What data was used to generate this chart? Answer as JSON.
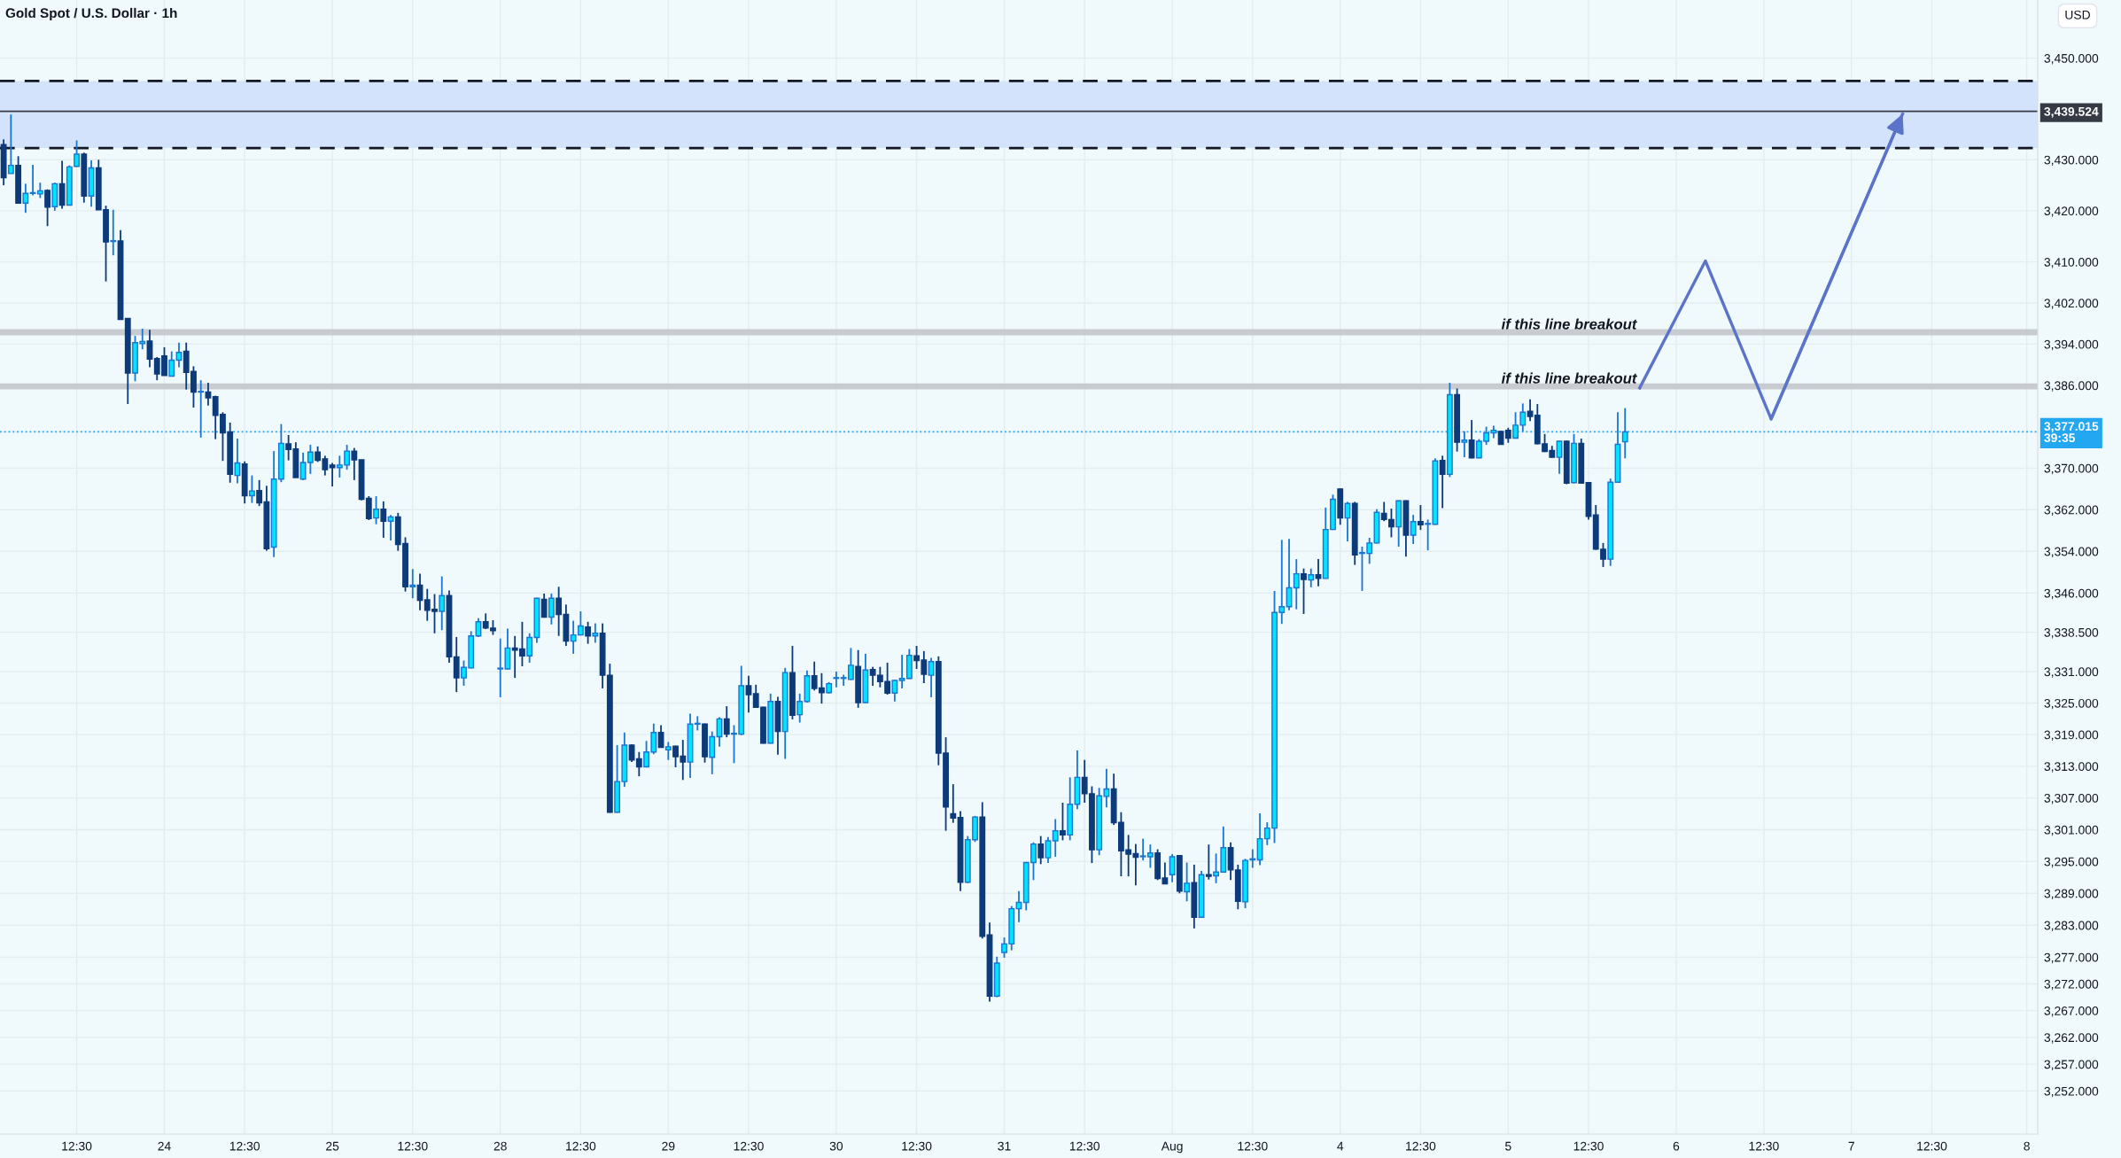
{
  "chart_data": {
    "type": "candlestick",
    "title": "Gold Spot / U.S. Dollar · 1h",
    "log": true,
    "grid": true,
    "ylim": [
      3244,
      3461.5
    ],
    "categories": [
      null,
      null,
      null,
      null,
      null,
      null,
      null,
      null,
      null,
      null,
      "12:30",
      null,
      null,
      null,
      null,
      null,
      null,
      null,
      null,
      null,
      null,
      null,
      "24",
      null,
      null,
      null,
      null,
      null,
      null,
      null,
      null,
      null,
      null,
      "12:30",
      null,
      null,
      null,
      null,
      null,
      null,
      null,
      null,
      null,
      null,
      null,
      "25",
      null,
      null,
      null,
      null,
      null,
      null,
      null,
      null,
      null,
      null,
      "12:30",
      null,
      null,
      null,
      null,
      null,
      null,
      null,
      null,
      null,
      null,
      null,
      "28",
      null,
      null,
      null,
      null,
      null,
      null,
      null,
      null,
      null,
      null,
      "12:30",
      null,
      null,
      null,
      null,
      null,
      null,
      null,
      null,
      null,
      null,
      null,
      "29",
      null,
      null,
      null,
      null,
      null,
      null,
      null,
      null,
      null,
      null,
      "12:30",
      null,
      null,
      null,
      null,
      null,
      null,
      null,
      null,
      null,
      null,
      null,
      "30",
      null,
      null,
      null,
      null,
      null,
      null,
      null,
      null,
      null,
      null,
      "12:30",
      null,
      null,
      null,
      null,
      null,
      null,
      null,
      null,
      null,
      null,
      null,
      "31",
      null,
      null,
      null,
      null,
      null,
      null,
      null,
      null,
      null,
      null,
      "12:30",
      null,
      null,
      null,
      null,
      null,
      null,
      null,
      null,
      null,
      null,
      null,
      "Aug",
      null,
      null,
      null,
      null,
      null,
      null,
      null,
      null,
      null,
      null,
      "12:30",
      null,
      null,
      null,
      null,
      null,
      null,
      null,
      null,
      null,
      null,
      null,
      "4",
      null,
      null,
      null,
      null,
      null,
      null,
      null,
      null,
      null,
      null,
      "12:30",
      null,
      null,
      null,
      null,
      null,
      null,
      null,
      null,
      null,
      null,
      null,
      "5",
      null,
      null,
      null,
      null,
      null,
      null,
      null,
      null,
      null,
      null,
      "12:30",
      null,
      null,
      null,
      null,
      null,
      null,
      null,
      null,
      null,
      null,
      null,
      "6",
      null,
      null,
      null,
      null,
      null,
      null,
      null,
      null,
      null,
      null,
      null,
      "12:30",
      null,
      null,
      null,
      null,
      null,
      null,
      null,
      null,
      null,
      null,
      null,
      "7",
      null,
      null,
      null,
      null,
      null,
      null,
      null,
      null,
      null,
      null,
      "12:30",
      null,
      null,
      null,
      null,
      null,
      null,
      null,
      null,
      null,
      null,
      null,
      null,
      "8",
      null
    ],
    "yticks": [
      {
        "value": 3450,
        "label": "3,450.000"
      },
      {
        "value": 3439.524,
        "label": "3,439.524"
      },
      {
        "value": 3430,
        "label": "3,430.000"
      },
      {
        "value": 3420,
        "label": "3,420.000"
      },
      {
        "value": 3410,
        "label": "3,410.000"
      },
      {
        "value": 3402,
        "label": "3,402.000"
      },
      {
        "value": 3394,
        "label": "3,394.000"
      },
      {
        "value": 3386,
        "label": "3,386.000"
      },
      {
        "value": 3377.015,
        "label": "3,377.015\n39:35"
      },
      {
        "value": 3370,
        "label": "3,370.000"
      },
      {
        "value": 3362,
        "label": "3,362.000"
      },
      {
        "value": 3354,
        "label": "3,354.000"
      },
      {
        "value": 3346,
        "label": "3,346.000"
      },
      {
        "value": 3338.5,
        "label": "3,338.500"
      },
      {
        "value": 3331,
        "label": "3,331.000"
      },
      {
        "value": 3325,
        "label": "3,325.000"
      },
      {
        "value": 3319,
        "label": "3,319.000"
      },
      {
        "value": 3313,
        "label": "3,313.000"
      },
      {
        "value": 3307,
        "label": "3,307.000"
      },
      {
        "value": 3301,
        "label": "3,301.000"
      },
      {
        "value": 3295,
        "label": "3,295.000"
      },
      {
        "value": 3289,
        "label": "3,289.000"
      },
      {
        "value": 3283,
        "label": "3,283.000"
      },
      {
        "value": 3277,
        "label": "3,277.000"
      },
      {
        "value": 3272,
        "label": "3,272.000"
      },
      {
        "value": 3267,
        "label": "3,267.000"
      },
      {
        "value": 3262,
        "label": "3,262.000"
      },
      {
        "value": 3257,
        "label": "3,257.000"
      },
      {
        "value": 3252,
        "label": "3,252.000"
      }
    ],
    "ohlc": [
      [
        3433,
        3434,
        3425,
        3426.5
      ],
      [
        3427.3,
        3438.9,
        3427.3,
        3428.9
      ],
      [
        3428.9,
        3430.7,
        3421.5,
        3421.5
      ],
      [
        3421.5,
        3425.3,
        3419.6,
        3423.4
      ],
      [
        3423.4,
        3429,
        3423,
        3423.5
      ],
      [
        3423.3,
        3425.5,
        3422.5,
        3423.9
      ],
      [
        3424,
        3424.2,
        3417,
        3420.7
      ],
      [
        3420.8,
        3425.5,
        3420,
        3425.3
      ],
      [
        3425.3,
        3429.8,
        3420.4,
        3421.1
      ],
      [
        3421.1,
        3428.9,
        3421.1,
        3428.6
      ],
      [
        3428.7,
        3433.8,
        3428.6,
        3431.1
      ],
      [
        3431.1,
        3431.4,
        3421.6,
        3422.9
      ],
      [
        3422.9,
        3429.9,
        3420.8,
        3428.4
      ],
      [
        3428.4,
        3430,
        3420.2,
        3420.2
      ],
      [
        3420.2,
        3421,
        3406.2,
        3413.9
      ],
      [
        3414,
        3420.2,
        3411.3,
        3414
      ],
      [
        3414.1,
        3416.2,
        3398.8,
        3398.8
      ],
      [
        3399,
        3399,
        3382.4,
        3388.4
      ],
      [
        3388.4,
        3395.6,
        3386.8,
        3394.3
      ],
      [
        3394.1,
        3397,
        3393,
        3394.5
      ],
      [
        3394.6,
        3396.8,
        3389.5,
        3391.1
      ],
      [
        3391.2,
        3391.5,
        3387,
        3388.2
      ],
      [
        3391.7,
        3393.4,
        3387.9,
        3387.9
      ],
      [
        3387.8,
        3392.6,
        3387.8,
        3390.9
      ],
      [
        3390.9,
        3394.3,
        3389.5,
        3392.4
      ],
      [
        3392.6,
        3394.3,
        3385.2,
        3388.5
      ],
      [
        3388.7,
        3389.7,
        3381.7,
        3384.7
      ],
      [
        3384.7,
        3387,
        3375.9,
        3384.7
      ],
      [
        3384.7,
        3386.5,
        3382.1,
        3383.6
      ],
      [
        3383.8,
        3384,
        3375.6,
        3380.2
      ],
      [
        3380.4,
        3380.8,
        3371.4,
        3376.8
      ],
      [
        3377,
        3378.8,
        3367.2,
        3368.8
      ],
      [
        3368.6,
        3375.7,
        3367.1,
        3371
      ],
      [
        3370.8,
        3371.3,
        3363.2,
        3364.7
      ],
      [
        3364.7,
        3368.6,
        3363.3,
        3365.6
      ],
      [
        3365.7,
        3367.7,
        3362.7,
        3363.3
      ],
      [
        3363.5,
        3366.6,
        3354.1,
        3354.5
      ],
      [
        3354.8,
        3373.3,
        3352.9,
        3367.9
      ],
      [
        3367.9,
        3378.5,
        3367.3,
        3374.8
      ],
      [
        3374.7,
        3376.4,
        3371.5,
        3373.6
      ],
      [
        3373.7,
        3375,
        3368.2,
        3368.2
      ],
      [
        3367.9,
        3373,
        3367.7,
        3371.1
      ],
      [
        3371.1,
        3374.5,
        3368.9,
        3373.1
      ],
      [
        3373.1,
        3374.2,
        3371.2,
        3371.5
      ],
      [
        3371.8,
        3372.4,
        3368.6,
        3369.7
      ],
      [
        3370.6,
        3371,
        3366.5,
        3370.1
      ],
      [
        3370.1,
        3372.4,
        3368.2,
        3370.6
      ],
      [
        3370.6,
        3374.5,
        3369.7,
        3373.3
      ],
      [
        3373.3,
        3373.9,
        3367.7,
        3371.6
      ],
      [
        3371.6,
        3371.6,
        3363.8,
        3364
      ],
      [
        3364.2,
        3364.6,
        3360,
        3360.3
      ],
      [
        3360.4,
        3364.6,
        3359.2,
        3362.1
      ],
      [
        3362.1,
        3363.6,
        3356.6,
        3359.8
      ],
      [
        3359.8,
        3361,
        3356.1,
        3360.6
      ],
      [
        3360.6,
        3361.4,
        3354.1,
        3355.3
      ],
      [
        3355.5,
        3356.7,
        3346.3,
        3347.2
      ],
      [
        3347.2,
        3350.6,
        3345,
        3347.5
      ],
      [
        3347.5,
        3349.7,
        3342.7,
        3344.6
      ],
      [
        3344.7,
        3346.8,
        3340.7,
        3342.7
      ],
      [
        3342.9,
        3345.8,
        3338.3,
        3342.5
      ],
      [
        3342.5,
        3349.2,
        3338.9,
        3345.5
      ],
      [
        3345.5,
        3346.5,
        3332.7,
        3333.8
      ],
      [
        3333.8,
        3337.6,
        3327.1,
        3329.8
      ],
      [
        3329.8,
        3333.1,
        3328.3,
        3331.8
      ],
      [
        3331.7,
        3338.7,
        3331.6,
        3337.8
      ],
      [
        3337.8,
        3341.2,
        3337.6,
        3340.5
      ],
      [
        3340.5,
        3342.1,
        3339.1,
        3339.3
      ],
      [
        3339.3,
        3340.8,
        3338,
        3338.8
      ],
      [
        3331.5,
        3337.3,
        3326.1,
        3331.5
      ],
      [
        3331.5,
        3339.2,
        3331.4,
        3335.5
      ],
      [
        3335.5,
        3337.8,
        3329.8,
        3335.1
      ],
      [
        3335.3,
        3340.5,
        3332,
        3334
      ],
      [
        3334,
        3338.3,
        3332.7,
        3337.5
      ],
      [
        3337.5,
        3345.1,
        3336.5,
        3345
      ],
      [
        3344.8,
        3345.9,
        3341.3,
        3341.4
      ],
      [
        3341.4,
        3345.9,
        3340,
        3345
      ],
      [
        3345,
        3347.2,
        3337.8,
        3341.9
      ],
      [
        3341.9,
        3343.8,
        3335.9,
        3336.8
      ],
      [
        3336.8,
        3340.7,
        3334.4,
        3338
      ],
      [
        3338,
        3342.5,
        3337.9,
        3339.7
      ],
      [
        3339.5,
        3340.5,
        3336.3,
        3337.8
      ],
      [
        3337.8,
        3340.2,
        3336.5,
        3338.3
      ],
      [
        3338.3,
        3340.2,
        3327.8,
        3330.3
      ],
      [
        3330.3,
        3332.5,
        3304.2,
        3304.3
      ],
      [
        3304.3,
        3317,
        3304.2,
        3310.1
      ],
      [
        3310.1,
        3319.4,
        3309.1,
        3317
      ],
      [
        3317,
        3317.2,
        3313.8,
        3314.2
      ],
      [
        3314.4,
        3315.7,
        3311.1,
        3312.9
      ],
      [
        3312.9,
        3317.8,
        3312.8,
        3315.7
      ],
      [
        3315.7,
        3321.1,
        3315.3,
        3319.4
      ],
      [
        3319.4,
        3320.8,
        3316.5,
        3316.6
      ],
      [
        3316.1,
        3317.6,
        3314.2,
        3316.7
      ],
      [
        3316.8,
        3316.9,
        3312.8,
        3314.8
      ],
      [
        3314.9,
        3318,
        3310.4,
        3313.8
      ],
      [
        3313.8,
        3323,
        3310.8,
        3321
      ],
      [
        3321,
        3322.5,
        3319.8,
        3321
      ],
      [
        3321,
        3321.1,
        3313.7,
        3314.8
      ],
      [
        3314.7,
        3319.6,
        3311.5,
        3318.6
      ],
      [
        3318.6,
        3322.3,
        3316.7,
        3322
      ],
      [
        3322,
        3324.4,
        3318.5,
        3319.1
      ],
      [
        3319.1,
        3320.8,
        3313.6,
        3319.1
      ],
      [
        3319.1,
        3332.1,
        3318.9,
        3328.3
      ],
      [
        3328.3,
        3330.2,
        3323.2,
        3326.6
      ],
      [
        3326.8,
        3328.5,
        3324.1,
        3324.2
      ],
      [
        3324.2,
        3324.3,
        3317.3,
        3317.4
      ],
      [
        3317.4,
        3326.8,
        3317.3,
        3325.3
      ],
      [
        3325.3,
        3326.2,
        3315.2,
        3319.6
      ],
      [
        3319.6,
        3331.7,
        3314.4,
        3330.8
      ],
      [
        3330.8,
        3335.9,
        3321.9,
        3322.7
      ],
      [
        3322.8,
        3326.8,
        3321.3,
        3325.3
      ],
      [
        3325.3,
        3331.2,
        3325.1,
        3330.2
      ],
      [
        3330.2,
        3332.9,
        3327.4,
        3327.8
      ],
      [
        3327.9,
        3330.7,
        3324.9,
        3327
      ],
      [
        3327,
        3329,
        3326.8,
        3328.7
      ],
      [
        3329.7,
        3331,
        3328,
        3329.7
      ],
      [
        3329.7,
        3330.4,
        3328.3,
        3329.7
      ],
      [
        3329.5,
        3335.5,
        3329.4,
        3332.2
      ],
      [
        3332,
        3335.1,
        3324.1,
        3325.1
      ],
      [
        3325.1,
        3334.4,
        3325,
        3331.3
      ],
      [
        3331.4,
        3331.9,
        3328.3,
        3330.3
      ],
      [
        3330.3,
        3331.9,
        3328,
        3329.1
      ],
      [
        3329.1,
        3332.7,
        3326.6,
        3326.9
      ],
      [
        3326.9,
        3329.4,
        3325.3,
        3329.3
      ],
      [
        3329.3,
        3334.2,
        3327.8,
        3329.7
      ],
      [
        3329.7,
        3335.3,
        3329.6,
        3334.1
      ],
      [
        3334,
        3335.9,
        3331.5,
        3333.1
      ],
      [
        3333.2,
        3334.9,
        3328.8,
        3330.5
      ],
      [
        3330.3,
        3333.6,
        3326.1,
        3332.9
      ],
      [
        3332.9,
        3333.9,
        3313.2,
        3315.5
      ],
      [
        3315.5,
        3318.5,
        3300.8,
        3305.3
      ],
      [
        3304,
        3309.6,
        3302.3,
        3303.2
      ],
      [
        3303.3,
        3304.5,
        3289.4,
        3291.1
      ],
      [
        3291.1,
        3299.8,
        3290.9,
        3299.1
      ],
      [
        3299.1,
        3303.6,
        3298.7,
        3303.4
      ],
      [
        3303.4,
        3306.2,
        3280.5,
        3280.9
      ],
      [
        3281.2,
        3283.5,
        3268.7,
        3269.7
      ],
      [
        3269.7,
        3277.1,
        3269.5,
        3275.9
      ],
      [
        3277.9,
        3280.7,
        3276.9,
        3279.5
      ],
      [
        3279.5,
        3286.6,
        3278.3,
        3286.1
      ],
      [
        3286.1,
        3289.4,
        3283.6,
        3287.3
      ],
      [
        3287.3,
        3294.9,
        3285.8,
        3294.8
      ],
      [
        3294.8,
        3298.6,
        3291.5,
        3298.3
      ],
      [
        3298.3,
        3299.8,
        3294.5,
        3295.7
      ],
      [
        3295.7,
        3299.6,
        3294.7,
        3298.9
      ],
      [
        3298.9,
        3303,
        3295.9,
        3300.8
      ],
      [
        3300.8,
        3306.1,
        3299,
        3300
      ],
      [
        3300,
        3310.9,
        3299,
        3305.8
      ],
      [
        3305.8,
        3316,
        3304.9,
        3310.9
      ],
      [
        3310.9,
        3314.2,
        3306.1,
        3307.8
      ],
      [
        3307.8,
        3309.2,
        3294.7,
        3297.2
      ],
      [
        3297.2,
        3308.9,
        3296.2,
        3307.4
      ],
      [
        3307.3,
        3312.5,
        3305.2,
        3308.7
      ],
      [
        3308.7,
        3311.6,
        3301.9,
        3302.3
      ],
      [
        3302.4,
        3304.3,
        3292.2,
        3297
      ],
      [
        3297.2,
        3300,
        3292.2,
        3296.4
      ],
      [
        3296.5,
        3298.3,
        3290.5,
        3295.8
      ],
      [
        3295.9,
        3299.3,
        3295.2,
        3295.9
      ],
      [
        3295.9,
        3298.2,
        3293.8,
        3296.6
      ],
      [
        3296.6,
        3297.3,
        3291.5,
        3291.8
      ],
      [
        3291.9,
        3294.8,
        3290.8,
        3290.8
      ],
      [
        3292.5,
        3296.4,
        3291.1,
        3295.9
      ],
      [
        3296.1,
        3296.2,
        3289,
        3289.4
      ],
      [
        3289.3,
        3294.8,
        3287.5,
        3290.9
      ],
      [
        3291,
        3294.4,
        3282.4,
        3284.5
      ],
      [
        3284.5,
        3293.2,
        3284.4,
        3292.5
      ],
      [
        3292.5,
        3298.2,
        3291.6,
        3292.2
      ],
      [
        3292.3,
        3296.5,
        3290.9,
        3293
      ],
      [
        3293,
        3301.6,
        3292.9,
        3297.6
      ],
      [
        3297.6,
        3298.6,
        3291.5,
        3293.4
      ],
      [
        3293.4,
        3294.4,
        3286,
        3287.5
      ],
      [
        3287.4,
        3295.5,
        3286.2,
        3295.2
      ],
      [
        3295.3,
        3297.3,
        3293.8,
        3295.5
      ],
      [
        3295.3,
        3304.1,
        3294.3,
        3299.3
      ],
      [
        3299.3,
        3302.4,
        3298.1,
        3301.3
      ],
      [
        3301.3,
        3346.4,
        3298.5,
        3342.3
      ],
      [
        3342.3,
        3356.2,
        3340.1,
        3343.4
      ],
      [
        3343.4,
        3356.4,
        3342.7,
        3347
      ],
      [
        3347,
        3352.5,
        3342.9,
        3349.7
      ],
      [
        3349.7,
        3350.7,
        3342,
        3348.6
      ],
      [
        3348.5,
        3350.7,
        3347.1,
        3349.5
      ],
      [
        3349.5,
        3352.5,
        3347.3,
        3348.8
      ],
      [
        3348.8,
        3362.4,
        3348.8,
        3358.2
      ],
      [
        3358.2,
        3364.9,
        3358.1,
        3364
      ],
      [
        3366,
        3366.1,
        3359.1,
        3360.4
      ],
      [
        3360.4,
        3363.5,
        3355.9,
        3363.2
      ],
      [
        3363.2,
        3363.5,
        3351.4,
        3353.3
      ],
      [
        3353.6,
        3354.9,
        3346.4,
        3353.6
      ],
      [
        3353.6,
        3356.6,
        3351.6,
        3355.6
      ],
      [
        3355.6,
        3362.1,
        3355.5,
        3361.5
      ],
      [
        3361.3,
        3363.5,
        3359.8,
        3360.1
      ],
      [
        3360.1,
        3362.2,
        3356.7,
        3358.7
      ],
      [
        3358.7,
        3363.8,
        3354.9,
        3363.7
      ],
      [
        3363.7,
        3363.8,
        3353,
        3357.1
      ],
      [
        3357.1,
        3361,
        3355.4,
        3359.7
      ],
      [
        3359.7,
        3362.9,
        3358.1,
        3359.1
      ],
      [
        3359.2,
        3360.1,
        3354.2,
        3359.2
      ],
      [
        3359.2,
        3371.9,
        3359.1,
        3371.4
      ],
      [
        3371.5,
        3372.4,
        3362.3,
        3368.8
      ],
      [
        3368.8,
        3386.5,
        3368.3,
        3384.2
      ],
      [
        3384.2,
        3385.4,
        3373.2,
        3375
      ],
      [
        3375,
        3377.1,
        3372.1,
        3375.4
      ],
      [
        3375.4,
        3379.3,
        3371.9,
        3372
      ],
      [
        3372,
        3375.6,
        3371.9,
        3375.2
      ],
      [
        3375.2,
        3378,
        3374.5,
        3376.8
      ],
      [
        3376.8,
        3378.2,
        3375.8,
        3377.3
      ],
      [
        3377.1,
        3377.2,
        3374.5,
        3374.6
      ],
      [
        3377.3,
        3377.8,
        3374.9,
        3375.8
      ],
      [
        3375.8,
        3380.8,
        3375.7,
        3378.3
      ],
      [
        3378.3,
        3382.5,
        3377.1,
        3380.8
      ],
      [
        3381,
        3383.3,
        3379.1,
        3380
      ],
      [
        3380.2,
        3382.4,
        3374.6,
        3374.7
      ],
      [
        3374.7,
        3376.6,
        3373.1,
        3373.2
      ],
      [
        3373.4,
        3374.3,
        3372,
        3372.1
      ],
      [
        3372.1,
        3375.3,
        3368.9,
        3375.2
      ],
      [
        3375.2,
        3375.3,
        3366.9,
        3367.1
      ],
      [
        3367.2,
        3376.6,
        3367.1,
        3374.8
      ],
      [
        3374.8,
        3375.7,
        3367,
        3367.1
      ],
      [
        3367.2,
        3367.3,
        3360.1,
        3360.7
      ],
      [
        3361,
        3362.9,
        3354.3,
        3354.4
      ],
      [
        3354.4,
        3355.6,
        3351,
        3352.5
      ],
      [
        3352.5,
        3368,
        3351.2,
        3367.3
      ],
      [
        3367.3,
        3380.8,
        3367.2,
        3374.6
      ],
      [
        3375.1,
        3381.6,
        3371.9,
        3377
      ],
      null,
      null,
      null,
      null,
      null,
      null,
      null,
      null,
      null,
      null,
      null,
      null,
      null,
      null,
      null,
      null,
      null,
      null,
      null,
      null,
      null,
      null,
      null,
      null,
      null,
      null,
      null,
      null,
      null,
      null,
      null,
      null,
      null,
      null,
      null,
      null,
      null,
      null,
      null,
      null,
      null,
      null,
      null,
      null,
      null,
      null,
      null,
      null,
      null,
      null,
      null,
      null,
      null,
      null,
      null,
      null
    ],
    "series": [
      {
        "type": "line",
        "color": "#5b74c9",
        "values": [
          null,
          null,
          null,
          null,
          null,
          null,
          null,
          null,
          null,
          null,
          null,
          null,
          null,
          null,
          null,
          null,
          null,
          null,
          null,
          null,
          null,
          null,
          null,
          null,
          null,
          null,
          null,
          null,
          null,
          null,
          null,
          null,
          null,
          null,
          null,
          null,
          null,
          null,
          null,
          null,
          null,
          null,
          null,
          null,
          null,
          null,
          null,
          null,
          null,
          null,
          null,
          null,
          null,
          null,
          null,
          null,
          null,
          null,
          null,
          null,
          null,
          null,
          null,
          null,
          null,
          null,
          null,
          null,
          null,
          null,
          null,
          null,
          null,
          null,
          null,
          null,
          null,
          null,
          null,
          null,
          null,
          null,
          null,
          null,
          null,
          null,
          null,
          null,
          null,
          null,
          null,
          null,
          null,
          null,
          null,
          null,
          null,
          null,
          null,
          null,
          null,
          null,
          null,
          null,
          null,
          null,
          null,
          null,
          null,
          null,
          null,
          null,
          null,
          null,
          null,
          null,
          null,
          null,
          null,
          null,
          null,
          null,
          null,
          null,
          null,
          null,
          null,
          null,
          null,
          null,
          null,
          null,
          null,
          null,
          null,
          null,
          null,
          null,
          null,
          null,
          null,
          null,
          null,
          null,
          null,
          null,
          null,
          null,
          null,
          null,
          null,
          null,
          null,
          null,
          null,
          null,
          null,
          null,
          null,
          null,
          null,
          null,
          null,
          null,
          null,
          null,
          null,
          null,
          null,
          null,
          null,
          null,
          null,
          null,
          null,
          null,
          null,
          null,
          null,
          null,
          null,
          null,
          null,
          null,
          null,
          null,
          null,
          null,
          null,
          null,
          null,
          null,
          null,
          null,
          null,
          null,
          null,
          null,
          null,
          null,
          null,
          null,
          null,
          null,
          null,
          null,
          null,
          null,
          null,
          null,
          null,
          null,
          null,
          null,
          null,
          null,
          null,
          null,
          null,
          null,
          null,
          null,
          null,
          null,
          3385.5,
          null,
          null,
          null,
          null,
          null,
          null,
          null,
          null,
          3410.2,
          null,
          null,
          null,
          null,
          null,
          null,
          null,
          null,
          3379.5,
          null,
          null,
          null,
          null,
          null,
          null,
          null,
          null,
          null,
          null,
          null,
          null,
          null,
          null,
          null,
          null,
          null,
          3439,
          null,
          null,
          null,
          null,
          null,
          null,
          null,
          null,
          null,
          null,
          null,
          null,
          null,
          null,
          null,
          null,
          null,
          null
        ]
      }
    ],
    "bands": [
      {
        "axis": "y",
        "from": 3432.3,
        "to": 3445.5,
        "color": "#d3e3fb"
      }
    ],
    "ref_lines": [
      {
        "axis": "y",
        "value": 3445.5,
        "color": "#131722",
        "line_style": "dashed"
      },
      {
        "axis": "y",
        "value": 3432.3,
        "color": "#131722",
        "line_style": "dashed"
      },
      {
        "axis": "y",
        "value": 3439.524,
        "color": "#363a45",
        "line_style": "solid"
      },
      {
        "axis": "y",
        "value": 3377.015,
        "color": "#22a7f0",
        "line_style": "dotted"
      },
      {
        "axis": "y",
        "value": 3396.3,
        "label": "if this line breakout",
        "color": "#c3c6cc",
        "line_style": "solid"
      },
      {
        "axis": "y",
        "value": 3385.8,
        "label": "if this line breakout",
        "color": "#c3c6cc",
        "line_style": "solid"
      }
    ],
    "annotations": [
      "USD"
    ]
  }
}
